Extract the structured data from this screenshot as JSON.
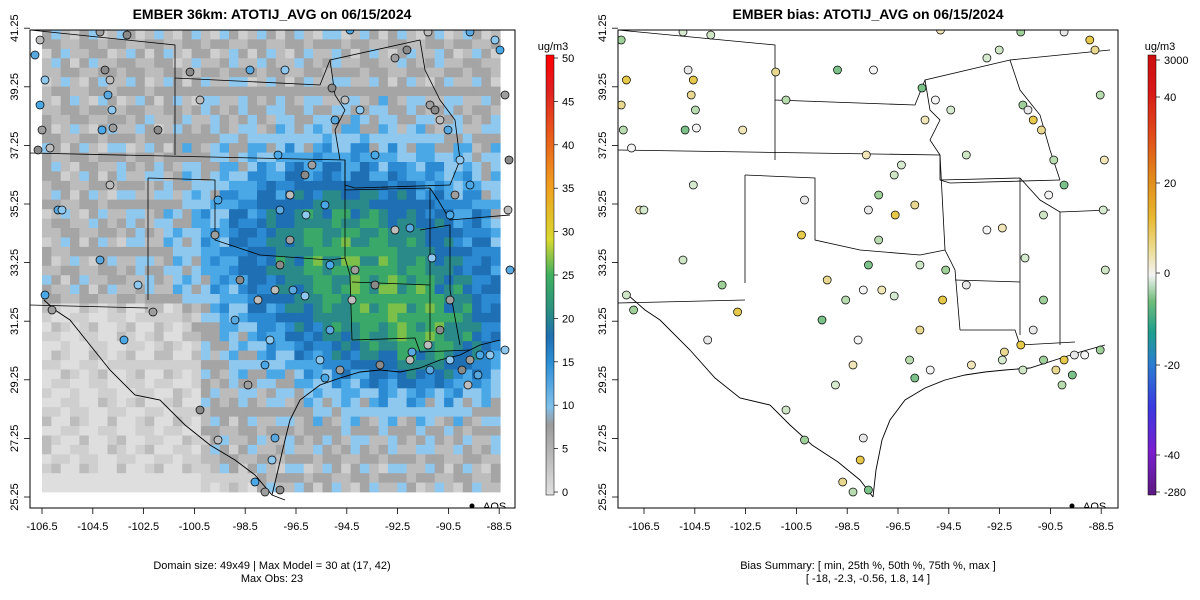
{
  "left_panel": {
    "title": "EMBER 36km: ATOTIJ_AVG on 06/15/2024",
    "x_ticks": [
      "-106.5",
      "-104.5",
      "-102.5",
      "-100.5",
      "-98.5",
      "-96.5",
      "-94.5",
      "-92.5",
      "-90.5",
      "-88.5"
    ],
    "y_ticks": [
      "25.25",
      "27.25",
      "29.25",
      "31.25",
      "33.25",
      "35.25",
      "37.25",
      "39.25",
      "41.25"
    ],
    "colorbar_unit": "ug/m3",
    "colorbar_ticks": [
      "0",
      "5",
      "10",
      "15",
      "20",
      "25",
      "30",
      "35",
      "40",
      "45",
      "50"
    ],
    "legend_label": "AQS",
    "caption_line1": "Domain size: 49x49 | Max Model = 30 at (17, 42)",
    "caption_line2": "Max Obs: 23"
  },
  "right_panel": {
    "title": "EMBER bias: ATOTIJ_AVG on 06/15/2024",
    "x_ticks": [
      "-106.5",
      "-104.5",
      "-102.5",
      "-100.5",
      "-98.5",
      "-96.5",
      "-94.5",
      "-92.5",
      "-90.5",
      "-88.5"
    ],
    "y_ticks": [
      "25.25",
      "27.25",
      "29.25",
      "31.25",
      "33.25",
      "35.25",
      "37.25",
      "39.25",
      "41.25"
    ],
    "colorbar_unit": "ug/m3",
    "colorbar_ticks": [
      "3000",
      "40",
      "20",
      "0",
      "-20",
      "-40",
      "-280"
    ],
    "legend_label": "AQS",
    "caption_line1": "Bias Summary: [ min, 25th %, 50th %, 75th %, max ]",
    "caption_line2": "[ -18,   -2.3,   -0.56,   1.8,   14 ]"
  },
  "colors": {
    "model_scale": [
      "#d9d9d9",
      "#bdbdbd",
      "#9e9e9e",
      "#6fb8e8",
      "#3a9edf",
      "#1f7fc4",
      "#1a6fa8",
      "#2e9e6e",
      "#3fae5f",
      "#8dc63f",
      "#d7d62a",
      "#f2b01e",
      "#f08a1c",
      "#e85a1a",
      "#e02020",
      "#cc0000",
      "#ff0000"
    ],
    "bias_scale": [
      "#5a1a80",
      "#7a1fd0",
      "#4b2fe0",
      "#1f55e0",
      "#2a7fd0",
      "#1f9e8c",
      "#4fb06a",
      "#8fc88a",
      "#cfe3c8",
      "#f2f2f2",
      "#efe4b0",
      "#ead27a",
      "#e8bf3a",
      "#e3a61a",
      "#e08a1a",
      "#e06a1a",
      "#e0301a",
      "#d01010"
    ]
  }
}
